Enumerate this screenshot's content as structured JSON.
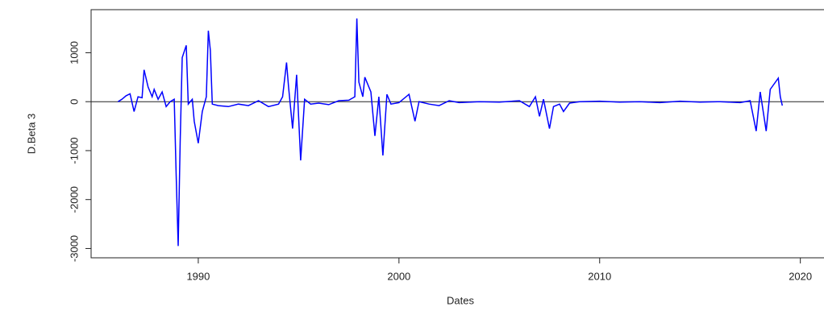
{
  "chart_data": {
    "type": "line",
    "x_label": "Dates",
    "y_label": "D.Beta 3",
    "xlim": [
      1984.66,
      2021.5
    ],
    "xticks": [
      1990,
      2000,
      2010,
      2020
    ],
    "ylim": [
      -3190,
      1880
    ],
    "yticks": [
      -3000,
      -2000,
      -1000,
      0,
      1000
    ],
    "hline": 0,
    "series": [
      {
        "color": "#0000ff",
        "x": [
          1986.0,
          1986.2,
          1986.4,
          1986.6,
          1986.8,
          1987.0,
          1987.2,
          1987.3,
          1987.5,
          1987.7,
          1987.8,
          1988.0,
          1988.2,
          1988.4,
          1988.6,
          1988.8,
          1988.9,
          1989.0,
          1989.1,
          1989.2,
          1989.4,
          1989.5,
          1989.7,
          1989.8,
          1990.0,
          1990.2,
          1990.4,
          1990.5,
          1990.6,
          1990.7,
          1991.0,
          1991.5,
          1992.0,
          1992.5,
          1993.0,
          1993.5,
          1994.0,
          1994.2,
          1994.4,
          1994.5,
          1994.7,
          1994.9,
          1995.1,
          1995.3,
          1995.6,
          1996.0,
          1996.5,
          1997.0,
          1997.5,
          1997.8,
          1997.9,
          1998.0,
          1998.2,
          1998.3,
          1998.5,
          1998.6,
          1998.8,
          1999.0,
          1999.2,
          1999.4,
          1999.6,
          2000.0,
          2000.5,
          2000.8,
          2001.0,
          2001.5,
          2002.0,
          2002.5,
          2003,
          2004,
          2005,
          2006.0,
          2006.5,
          2006.8,
          2007.0,
          2007.2,
          2007.5,
          2007.7,
          2008.0,
          2008.2,
          2008.5,
          2009,
          2010,
          2011,
          2012,
          2013,
          2014,
          2015,
          2016,
          2017.0,
          2017.5,
          2017.8,
          2018.0,
          2018.3,
          2018.5,
          2018.9,
          2019.0,
          2019.1
        ],
        "values": [
          0,
          50,
          120,
          160,
          -200,
          100,
          80,
          650,
          300,
          100,
          250,
          50,
          200,
          -100,
          0,
          50,
          -1500,
          -2950,
          -800,
          900,
          1150,
          -50,
          50,
          -400,
          -850,
          -200,
          100,
          1450,
          1050,
          -50,
          -80,
          -100,
          -50,
          -80,
          20,
          -100,
          -50,
          100,
          800,
          300,
          -550,
          550,
          -1200,
          50,
          -50,
          -30,
          -60,
          20,
          30,
          100,
          1700,
          400,
          100,
          500,
          300,
          200,
          -700,
          100,
          -1100,
          150,
          -50,
          -20,
          150,
          -400,
          0,
          -50,
          -80,
          20,
          -20,
          0,
          -10,
          20,
          -100,
          100,
          -300,
          50,
          -550,
          -100,
          -50,
          -200,
          -30,
          0,
          10,
          -10,
          0,
          -20,
          10,
          -10,
          0,
          -20,
          20,
          -600,
          200,
          -600,
          250,
          480,
          100,
          -80
        ]
      }
    ]
  }
}
